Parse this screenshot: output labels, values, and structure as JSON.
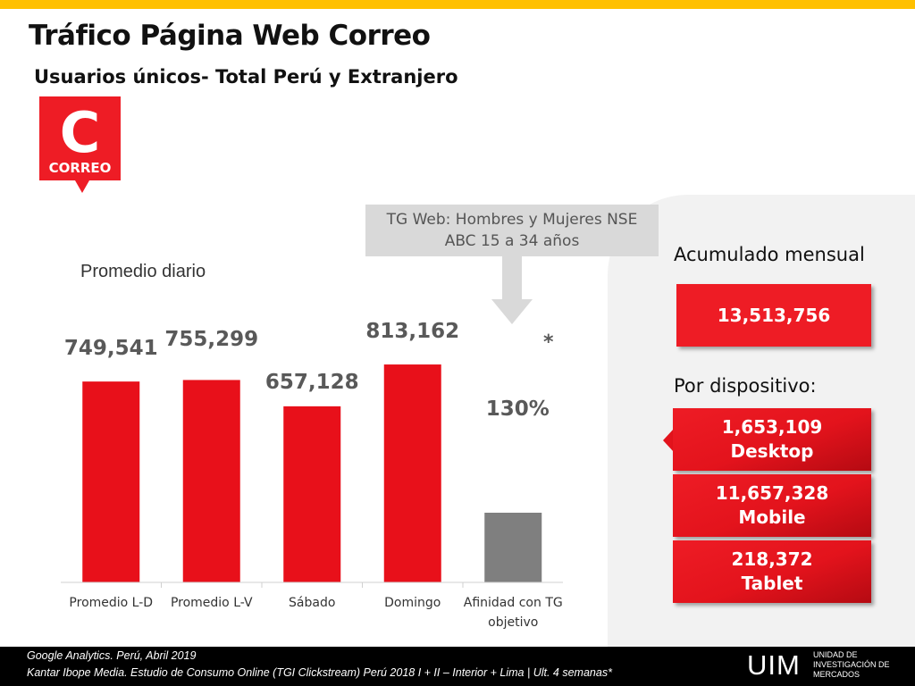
{
  "header": {
    "title": "Tráfico Página Web Correo",
    "subtitle": "Usuarios únicos- Total Perú y Extranjero"
  },
  "logo": {
    "brand": "CORREO",
    "letter": "C",
    "color": "#ee1c25"
  },
  "callout": {
    "text": "TG Web: Hombres y Mujeres NSE\nABC 15 a 34 años"
  },
  "chart_data": {
    "type": "bar",
    "title": "Promedio diario",
    "categories": [
      "Promedio L-D",
      "Promedio L-V",
      "Sábado",
      "Domingo",
      "Afinidad con TG objetivo"
    ],
    "value_labels": [
      "749,541",
      "755,299",
      "657,128",
      "813,162",
      "130%"
    ],
    "values": [
      749541,
      755299,
      657128,
      813162,
      130
    ],
    "bar_colors": [
      "#e8101a",
      "#e8101a",
      "#e8101a",
      "#e8101a",
      "#7f7f7f"
    ],
    "affinity_note": "*",
    "ylim": [
      0,
      1000000
    ],
    "grid": false
  },
  "summary": {
    "accumulated_label": "Acumulado mensual",
    "accumulated_value": "13,513,756",
    "device_label": "Por dispositivo:",
    "devices": [
      {
        "value": "1,653,109",
        "name": "Desktop"
      },
      {
        "value": "11,657,328",
        "name": "Mobile"
      },
      {
        "value": "218,372",
        "name": "Tablet"
      }
    ]
  },
  "footer": {
    "source1": "Google Analytics. Perú,  Abril 2019",
    "source2": "Kantar Ibope Media. Estudio de Consumo Online (TGI Clickstream) Perú 2018 I + II – Interior + Lima | Ult. 4 semanas*",
    "org_abbr": "UIM",
    "org_name": "UNIDAD DE\nINVESTIGACIÓN DE\n  MERCADOS"
  }
}
